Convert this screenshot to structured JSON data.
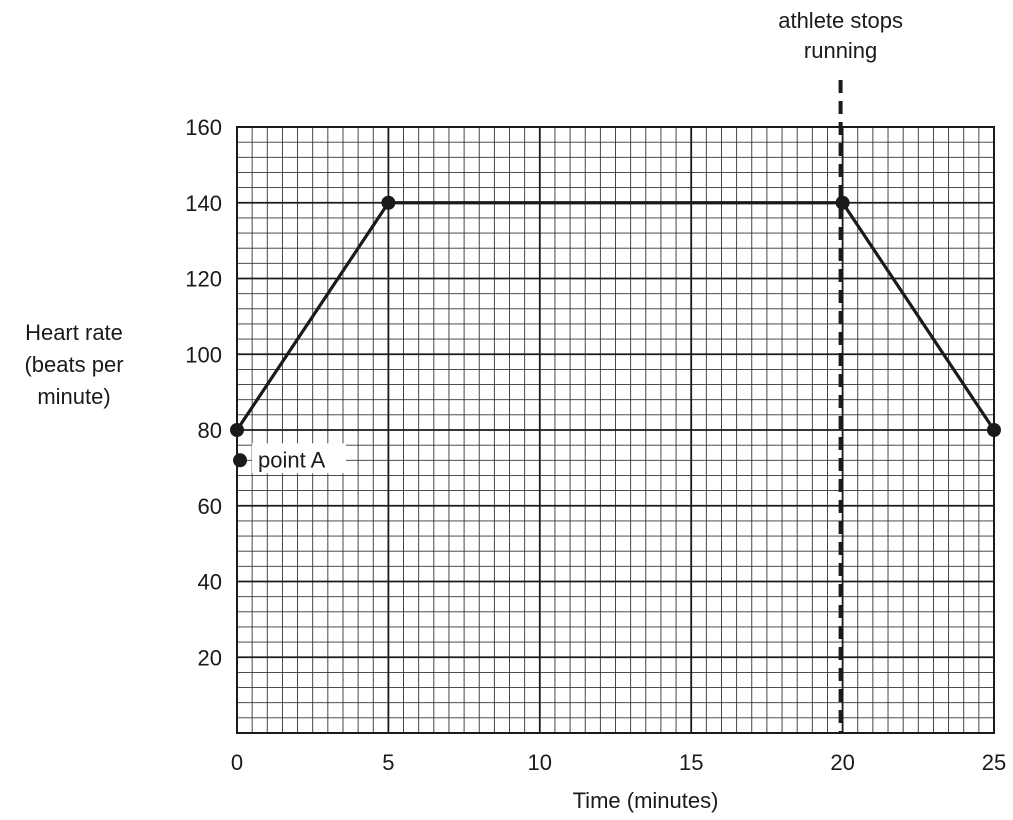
{
  "chart_data": {
    "type": "line",
    "title": "",
    "xlabel": "Time (minutes)",
    "ylabel_lines": [
      "Heart rate",
      "(beats per",
      "minute)"
    ],
    "xlim": [
      0,
      25
    ],
    "ylim": [
      0,
      160
    ],
    "x_ticks": [
      "0",
      "5",
      "10",
      "15",
      "20",
      "25"
    ],
    "y_ticks": [
      "20",
      "40",
      "60",
      "80",
      "100",
      "120",
      "140",
      "160"
    ],
    "grid": true,
    "grid_minor_x_step": 0.5,
    "grid_minor_y_step": 4,
    "grid_major_x_step": 5,
    "grid_major_y_step": 20,
    "series": [
      {
        "x": [
          0,
          5,
          20,
          25
        ],
        "y": [
          80,
          140,
          140,
          80
        ]
      }
    ],
    "extra_points": [
      {
        "label": "point A",
        "x": 0.1,
        "y": 72
      }
    ],
    "vertical_marker": {
      "x": 20,
      "style": "dashed",
      "label_lines": [
        "athlete stops",
        "running"
      ]
    },
    "colors": {
      "line": "#1a1a1a",
      "grid_minor": "#333333",
      "grid_major": "#1a1a1a"
    }
  }
}
